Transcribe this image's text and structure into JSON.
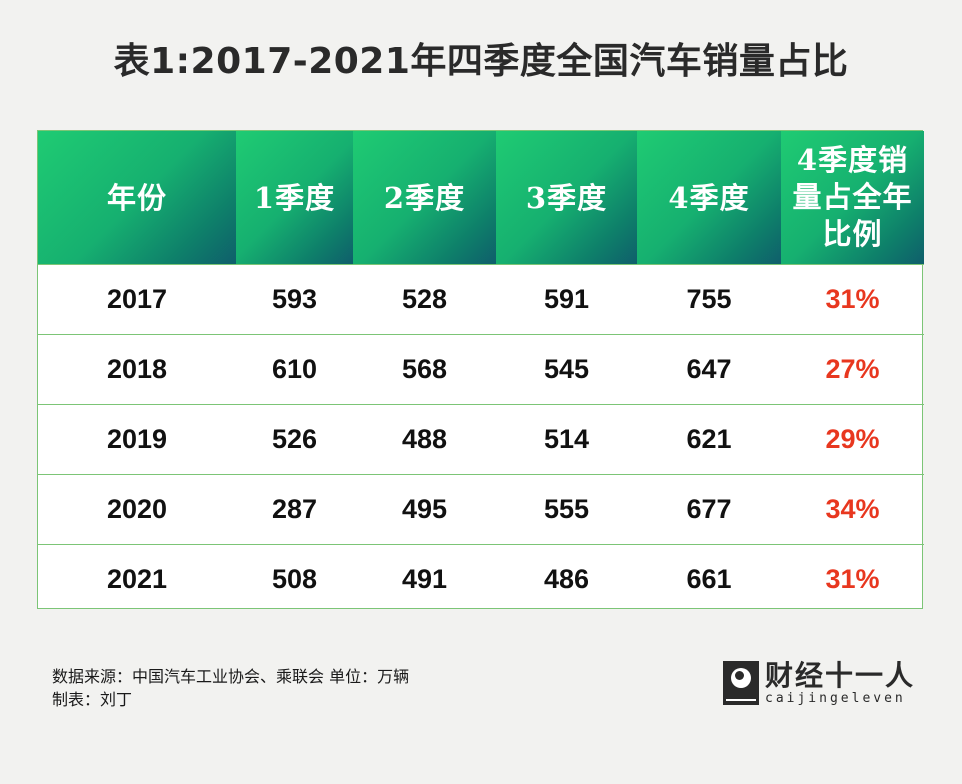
{
  "title": "表1:2017-2021年四季度全国汽车销量占比",
  "table": {
    "headers": [
      "年份",
      "1季度",
      "2季度",
      "3季度",
      "4季度",
      "4季度销量占全年比例"
    ],
    "rows": [
      [
        "2017",
        "593",
        "528",
        "591",
        "755",
        "31%"
      ],
      [
        "2018",
        "610",
        "568",
        "545",
        "647",
        "27%"
      ],
      [
        "2019",
        "526",
        "488",
        "514",
        "621",
        "29%"
      ],
      [
        "2020",
        "287",
        "495",
        "555",
        "677",
        "34%"
      ],
      [
        "2021",
        "508",
        "491",
        "486",
        "661",
        "31%"
      ]
    ]
  },
  "footer": {
    "source": "数据来源：中国汽车工业协会、乘联会 单位：万辆",
    "author": "制表：刘丁"
  },
  "logo": {
    "cn": "财经十一人",
    "en": "caijingeleven",
    "icon": "globe-logo-icon"
  },
  "colors": {
    "header_gradient_start": "#1fcb73",
    "header_gradient_end": "#0f5e6b",
    "ratio_text": "#e8371f",
    "border": "#7cc576"
  }
}
